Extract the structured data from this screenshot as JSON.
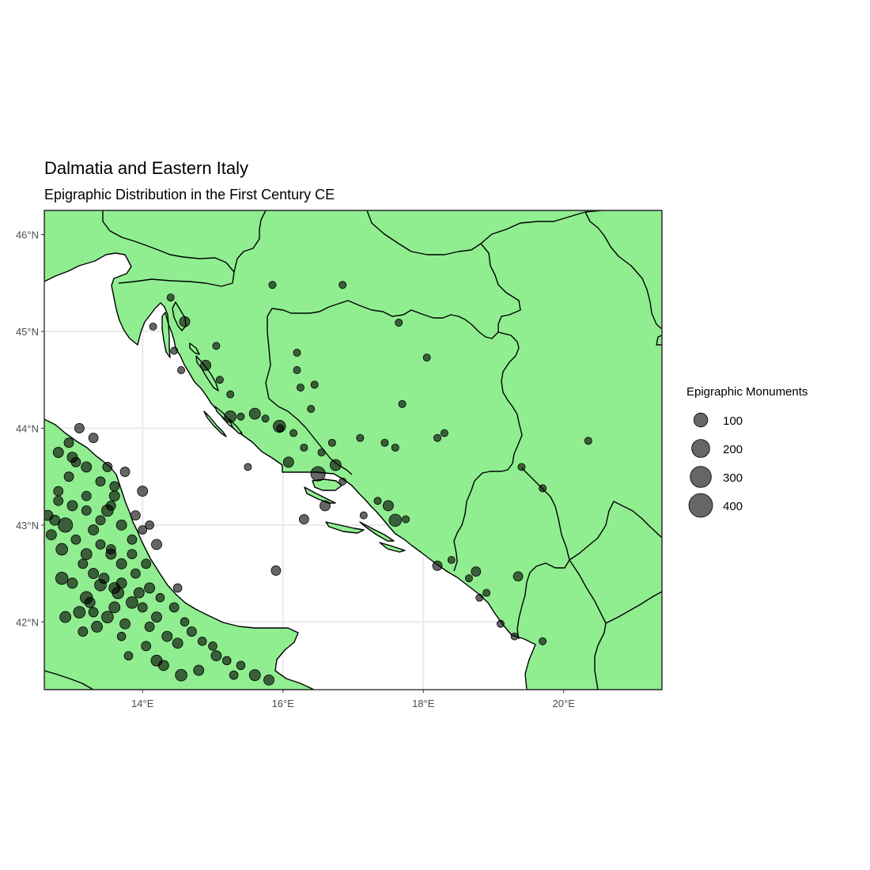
{
  "chart_data": {
    "type": "scatter",
    "map_type": "proportional symbol map",
    "title": "Dalmatia and Eastern Italy",
    "subtitle": "Epigraphic Distribution in the First Century CE",
    "xlabel": "",
    "ylabel": "",
    "xlim": [
      12.6,
      21.4
    ],
    "ylim": [
      41.3,
      46.25
    ],
    "x_ticks": [
      {
        "value": 14,
        "label": "14°E"
      },
      {
        "value": 16,
        "label": "16°E"
      },
      {
        "value": 18,
        "label": "18°E"
      },
      {
        "value": 20,
        "label": "20°E"
      }
    ],
    "y_ticks": [
      {
        "value": 42,
        "label": "42°N"
      },
      {
        "value": 43,
        "label": "43°N"
      },
      {
        "value": 44,
        "label": "44°N"
      },
      {
        "value": 45,
        "label": "45°N"
      },
      {
        "value": 46,
        "label": "46°N"
      }
    ],
    "grid": true,
    "legend": {
      "title": "Epigraphic Monuments",
      "position": "right",
      "entries": [
        {
          "value": 100,
          "label": "100"
        },
        {
          "value": 200,
          "label": "200"
        },
        {
          "value": 300,
          "label": "300"
        },
        {
          "value": 400,
          "label": "400"
        }
      ]
    },
    "colors": {
      "land": "#90ee90",
      "sea": "#ffffff",
      "points": "#000000",
      "border": "#000000"
    },
    "point_alpha": 0.6,
    "points": [
      [
        15.85,
        45.48,
        10
      ],
      [
        16.85,
        45.48,
        10
      ],
      [
        17.65,
        45.09,
        10
      ],
      [
        18.05,
        44.73,
        10
      ],
      [
        16.2,
        44.6,
        10
      ],
      [
        16.25,
        44.42,
        10
      ],
      [
        16.4,
        44.2,
        10
      ],
      [
        17.1,
        43.9,
        10
      ],
      [
        17.6,
        43.8,
        10
      ],
      [
        18.2,
        43.9,
        10
      ],
      [
        18.3,
        43.95,
        10
      ],
      [
        19.4,
        43.6,
        10
      ],
      [
        19.7,
        43.38,
        10
      ],
      [
        20.35,
        43.87,
        10
      ],
      [
        15.05,
        44.85,
        10
      ],
      [
        15.1,
        44.5,
        10
      ],
      [
        15.25,
        44.35,
        10
      ],
      [
        15.4,
        44.12,
        10
      ],
      [
        15.75,
        44.1,
        10
      ],
      [
        15.96,
        44.0,
        10
      ],
      [
        16.15,
        43.95,
        10
      ],
      [
        16.3,
        43.8,
        10
      ],
      [
        16.55,
        43.75,
        10
      ],
      [
        16.7,
        43.85,
        10
      ],
      [
        16.85,
        43.45,
        10
      ],
      [
        17.15,
        43.1,
        10
      ],
      [
        17.35,
        43.25,
        10
      ],
      [
        17.75,
        43.06,
        10
      ],
      [
        18.4,
        42.64,
        10
      ],
      [
        18.65,
        42.45,
        10
      ],
      [
        18.9,
        42.3,
        10
      ],
      [
        18.8,
        42.25,
        10
      ],
      [
        19.7,
        41.8,
        10
      ],
      [
        19.1,
        41.98,
        10
      ],
      [
        19.3,
        41.85,
        10
      ],
      [
        15.5,
        43.6,
        10
      ],
      [
        14.55,
        44.6,
        10
      ],
      [
        14.45,
        44.8,
        10
      ],
      [
        14.4,
        45.35,
        10
      ],
      [
        14.15,
        45.05,
        10
      ],
      [
        17.45,
        43.85,
        10
      ],
      [
        17.7,
        44.25,
        10
      ],
      [
        16.45,
        44.45,
        10
      ],
      [
        16.2,
        44.78,
        10
      ],
      [
        16.08,
        43.65,
        40
      ],
      [
        16.5,
        43.53,
        110
      ],
      [
        15.95,
        44.02,
        70
      ],
      [
        15.6,
        44.15,
        50
      ],
      [
        15.25,
        44.12,
        60
      ],
      [
        14.6,
        45.1,
        40
      ],
      [
        14.9,
        44.65,
        40
      ],
      [
        16.6,
        43.2,
        40
      ],
      [
        17.6,
        43.05,
        70
      ],
      [
        17.5,
        43.2,
        40
      ],
      [
        18.2,
        42.58,
        30
      ],
      [
        18.75,
        42.52,
        30
      ],
      [
        19.35,
        42.47,
        30
      ],
      [
        16.75,
        43.62,
        50
      ],
      [
        15.9,
        42.53,
        30
      ],
      [
        16.3,
        43.06,
        30
      ],
      [
        13.1,
        44.0,
        30
      ],
      [
        13.3,
        43.9,
        30
      ],
      [
        12.8,
        43.75,
        40
      ],
      [
        13.0,
        43.7,
        40
      ],
      [
        13.2,
        43.6,
        40
      ],
      [
        13.5,
        43.6,
        30
      ],
      [
        13.4,
        43.45,
        30
      ],
      [
        13.6,
        43.3,
        40
      ],
      [
        13.2,
        43.3,
        30
      ],
      [
        13.0,
        43.2,
        40
      ],
      [
        13.5,
        43.15,
        60
      ],
      [
        13.7,
        43.0,
        40
      ],
      [
        13.3,
        42.95,
        40
      ],
      [
        13.05,
        42.85,
        30
      ],
      [
        12.85,
        42.75,
        60
      ],
      [
        13.2,
        42.7,
        50
      ],
      [
        13.55,
        42.7,
        40
      ],
      [
        13.7,
        42.6,
        40
      ],
      [
        13.9,
        42.5,
        30
      ],
      [
        13.3,
        42.5,
        40
      ],
      [
        13.0,
        42.4,
        40
      ],
      [
        13.4,
        42.38,
        60
      ],
      [
        13.65,
        42.3,
        60
      ],
      [
        13.2,
        42.25,
        70
      ],
      [
        13.85,
        42.2,
        60
      ],
      [
        13.6,
        42.15,
        50
      ],
      [
        13.5,
        42.05,
        60
      ],
      [
        13.75,
        41.98,
        40
      ],
      [
        13.35,
        41.95,
        50
      ],
      [
        13.95,
        42.3,
        40
      ],
      [
        14.1,
        42.35,
        40
      ],
      [
        14.2,
        42.05,
        40
      ],
      [
        14.35,
        41.85,
        40
      ],
      [
        14.5,
        41.78,
        40
      ],
      [
        14.2,
        41.6,
        50
      ],
      [
        14.3,
        41.55,
        40
      ],
      [
        14.55,
        41.45,
        60
      ],
      [
        14.8,
        41.5,
        40
      ],
      [
        15.05,
        41.65,
        40
      ],
      [
        15.6,
        41.45,
        50
      ],
      [
        15.8,
        41.4,
        40
      ],
      [
        14.2,
        42.8,
        40
      ],
      [
        14.0,
        43.35,
        40
      ],
      [
        13.1,
        42.1,
        60
      ],
      [
        13.25,
        42.2,
        40
      ],
      [
        12.9,
        42.05,
        50
      ],
      [
        12.7,
        42.9,
        40
      ],
      [
        12.75,
        43.05,
        40
      ],
      [
        12.65,
        43.1,
        40
      ],
      [
        12.8,
        43.35,
        30
      ],
      [
        12.95,
        43.5,
        30
      ],
      [
        13.05,
        43.65,
        30
      ],
      [
        13.15,
        42.6,
        30
      ],
      [
        13.4,
        42.8,
        30
      ],
      [
        13.85,
        42.85,
        30
      ],
      [
        14.05,
        42.6,
        30
      ],
      [
        14.45,
        42.15,
        30
      ],
      [
        14.6,
        42.0,
        20
      ],
      [
        14.7,
        41.9,
        30
      ],
      [
        14.85,
        41.8,
        20
      ],
      [
        15.0,
        41.75,
        20
      ],
      [
        15.2,
        41.6,
        20
      ],
      [
        15.4,
        41.55,
        20
      ],
      [
        15.3,
        41.45,
        20
      ],
      [
        14.05,
        41.75,
        30
      ],
      [
        13.8,
        41.65,
        20
      ],
      [
        12.9,
        43.0,
        110
      ],
      [
        12.85,
        42.45,
        70
      ],
      [
        12.8,
        43.25,
        30
      ],
      [
        12.95,
        43.85,
        30
      ],
      [
        13.6,
        42.35,
        50
      ],
      [
        13.7,
        41.85,
        20
      ],
      [
        14.0,
        42.15,
        30
      ],
      [
        13.85,
        42.7,
        30
      ],
      [
        13.55,
        42.75,
        30
      ],
      [
        13.2,
        43.15,
        30
      ],
      [
        13.4,
        43.05,
        30
      ],
      [
        13.6,
        43.4,
        30
      ],
      [
        13.75,
        43.55,
        30
      ],
      [
        13.55,
        43.2,
        30
      ],
      [
        13.9,
        43.1,
        30
      ],
      [
        14.1,
        43.0,
        20
      ],
      [
        14.0,
        42.95,
        20
      ],
      [
        13.3,
        42.1,
        30
      ],
      [
        13.15,
        41.9,
        30
      ],
      [
        14.1,
        41.95,
        30
      ],
      [
        14.25,
        42.25,
        20
      ],
      [
        14.5,
        42.35,
        20
      ],
      [
        13.7,
        42.4,
        40
      ],
      [
        13.45,
        42.45,
        40
      ]
    ]
  }
}
